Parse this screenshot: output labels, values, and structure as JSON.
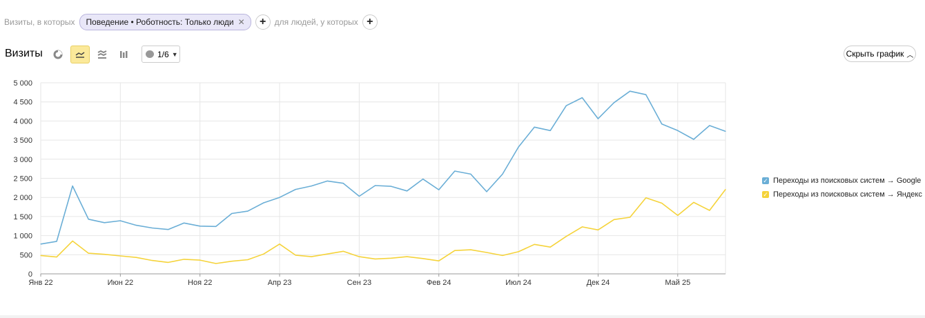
{
  "filters": {
    "visits_label": "Визиты, в которых",
    "chip_label": "Поведение • Роботность: Только люди",
    "people_label": "для людей, у которых"
  },
  "header": {
    "title": "Визиты",
    "notes_label": "1/6",
    "hide_chart_label": "Скрыть график"
  },
  "colors": {
    "google": "#6aaed6",
    "yandex": "#f5d33a",
    "grid": "#e6e6e6",
    "active_tool": "#fbe99a"
  },
  "chart_data": {
    "type": "line",
    "title": "",
    "xlabel": "",
    "ylabel": "",
    "ylim": [
      0,
      5000
    ],
    "yticks": [
      0,
      500,
      1000,
      1500,
      2000,
      2500,
      3000,
      3500,
      4000,
      4500,
      5000
    ],
    "ytick_labels": [
      "0",
      "500",
      "1 000",
      "1 500",
      "2 000",
      "2 500",
      "3 000",
      "3 500",
      "4 000",
      "4 500",
      "5 000"
    ],
    "x": [
      "2022-01",
      "2022-02",
      "2022-03",
      "2022-04",
      "2022-05",
      "2022-06",
      "2022-07",
      "2022-08",
      "2022-09",
      "2022-10",
      "2022-11",
      "2022-12",
      "2023-01",
      "2023-02",
      "2023-03",
      "2023-04",
      "2023-05",
      "2023-06",
      "2023-07",
      "2023-08",
      "2023-09",
      "2023-10",
      "2023-11",
      "2023-12",
      "2024-01",
      "2024-02",
      "2024-03",
      "2024-04",
      "2024-05",
      "2024-06",
      "2024-07",
      "2024-08",
      "2024-09",
      "2024-10",
      "2024-11",
      "2024-12",
      "2025-01",
      "2025-02",
      "2025-03",
      "2025-04",
      "2025-05",
      "2025-06",
      "2025-07",
      "2025-08"
    ],
    "xticks": [
      {
        "index": 0,
        "label": "Янв 22"
      },
      {
        "index": 5,
        "label": "Июн 22"
      },
      {
        "index": 10,
        "label": "Ноя 22"
      },
      {
        "index": 15,
        "label": "Апр 23"
      },
      {
        "index": 20,
        "label": "Сен 23"
      },
      {
        "index": 25,
        "label": "Фев 24"
      },
      {
        "index": 30,
        "label": "Июл 24"
      },
      {
        "index": 35,
        "label": "Дек 24"
      },
      {
        "index": 40,
        "label": "Май 25"
      }
    ],
    "grid": true,
    "legend_position": "right",
    "series": [
      {
        "name": "Переходы из поисковых систем → Google",
        "color": "#6aaed6",
        "values": [
          780,
          850,
          2300,
          1430,
          1340,
          1390,
          1270,
          1200,
          1160,
          1330,
          1250,
          1240,
          1580,
          1640,
          1860,
          2000,
          2210,
          2300,
          2430,
          2370,
          2030,
          2310,
          2290,
          2170,
          2480,
          2200,
          2690,
          2610,
          2150,
          2610,
          3320,
          3840,
          3750,
          4400,
          4610,
          4060,
          4480,
          4780,
          4690,
          3920,
          3750,
          3520,
          3880,
          3730
        ]
      },
      {
        "name": "Переходы из поисковых систем → Яндекс",
        "color": "#f5d33a",
        "values": [
          480,
          440,
          860,
          540,
          510,
          470,
          430,
          350,
          300,
          380,
          360,
          270,
          330,
          370,
          520,
          780,
          490,
          450,
          520,
          590,
          450,
          390,
          410,
          450,
          400,
          340,
          610,
          630,
          560,
          480,
          580,
          770,
          700,
          980,
          1230,
          1150,
          1420,
          1480,
          1990,
          1850,
          1530,
          1870,
          1660,
          2210
        ]
      }
    ]
  }
}
